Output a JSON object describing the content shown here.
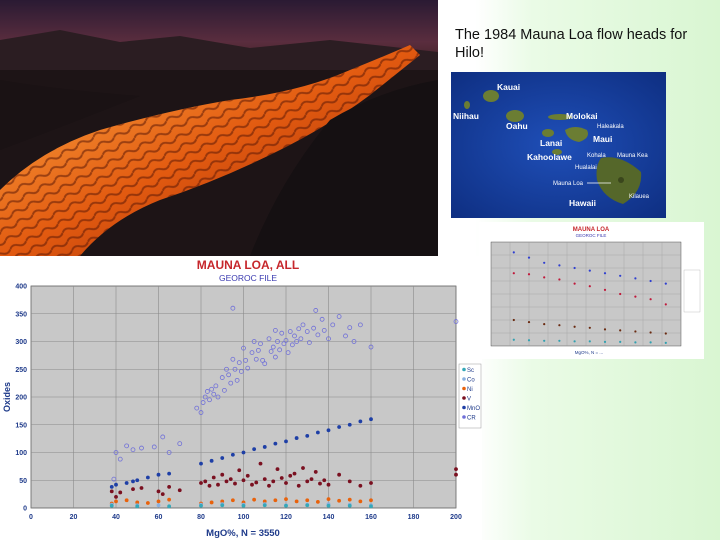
{
  "caption": "The 1984 Mauna Loa flow heads for Hilo!",
  "map": {
    "islands": {
      "kauai": "Kauai",
      "niihau": "Niihau",
      "oahu": "Oahu",
      "molokai": "Molokai",
      "lanai": "Lanai",
      "maui": "Maui",
      "kahoolawe": "Kahoolawe",
      "hawaii": "Hawaii"
    },
    "volcanoes": {
      "haleakala": "Haleakala",
      "kohala": "Kohala",
      "mauna_kea": "Mauna Kea",
      "hualalai": "Hualalai",
      "mauna_loa": "Mauna Loa",
      "kilauea": "Kilauea"
    }
  },
  "chart_data": [
    {
      "type": "scatter",
      "title": "MAUNA LOA, ALL",
      "subtitle": "GEOROC FILE",
      "xlabel": "MgO%,  N = 3550",
      "ylabel": "Oxides",
      "xlim": [
        0,
        200
      ],
      "ylim": [
        0,
        400
      ],
      "x_ticks": [
        0,
        20,
        40,
        60,
        80,
        100,
        120,
        140,
        160,
        180,
        200
      ],
      "y_ticks": [
        0,
        50,
        100,
        150,
        200,
        250,
        300,
        350,
        400
      ],
      "grid": true,
      "legend_position": "right",
      "series": [
        {
          "name": "CR",
          "color": "#7070d8",
          "marker": "ring",
          "points": [
            [
              39,
              52
            ],
            [
              40,
              100
            ],
            [
              42,
              88
            ],
            [
              45,
              112
            ],
            [
              48,
              105
            ],
            [
              52,
              108
            ],
            [
              58,
              110
            ],
            [
              62,
              128
            ],
            [
              65,
              100
            ],
            [
              70,
              116
            ],
            [
              78,
              180
            ],
            [
              80,
              172
            ],
            [
              81,
              190
            ],
            [
              82,
              200
            ],
            [
              83,
              210
            ],
            [
              84,
              195
            ],
            [
              85,
              214
            ],
            [
              86,
              205
            ],
            [
              87,
              220
            ],
            [
              88,
              200
            ],
            [
              90,
              235
            ],
            [
              91,
              212
            ],
            [
              92,
              250
            ],
            [
              93,
              240
            ],
            [
              94,
              225
            ],
            [
              95,
              268
            ],
            [
              96,
              250
            ],
            [
              97,
              230
            ],
            [
              98,
              262
            ],
            [
              99,
              246
            ],
            [
              100,
              288
            ],
            [
              101,
              266
            ],
            [
              102,
              252
            ],
            [
              104,
              280
            ],
            [
              105,
              300
            ],
            [
              106,
              268
            ],
            [
              107,
              284
            ],
            [
              108,
              296
            ],
            [
              109,
              266
            ],
            [
              110,
              260
            ],
            [
              112,
              305
            ],
            [
              113,
              282
            ],
            [
              114,
              290
            ],
            [
              115,
              272
            ],
            [
              116,
              300
            ],
            [
              117,
              285
            ],
            [
              118,
              315
            ],
            [
              119,
              296
            ],
            [
              120,
              302
            ],
            [
              121,
              280
            ],
            [
              122,
              318
            ],
            [
              123,
              294
            ],
            [
              124,
              310
            ],
            [
              125,
              300
            ],
            [
              126,
              323
            ],
            [
              127,
              305
            ],
            [
              128,
              330
            ],
            [
              130,
              318
            ],
            [
              131,
              298
            ],
            [
              133,
              324
            ],
            [
              135,
              312
            ],
            [
              137,
              340
            ],
            [
              138,
              320
            ],
            [
              140,
              305
            ],
            [
              142,
              330
            ],
            [
              145,
              345
            ],
            [
              148,
              310
            ],
            [
              150,
              325
            ],
            [
              152,
              300
            ],
            [
              155,
              330
            ],
            [
              160,
              290
            ],
            [
              95,
              360
            ],
            [
              115,
              320
            ],
            [
              134,
              356
            ],
            [
              200,
              336
            ]
          ]
        },
        {
          "name": "MnO",
          "color": "#1e3fa6",
          "marker": "dot",
          "points": [
            [
              38,
              38
            ],
            [
              40,
              42
            ],
            [
              45,
              45
            ],
            [
              48,
              48
            ],
            [
              50,
              50
            ],
            [
              55,
              55
            ],
            [
              60,
              60
            ],
            [
              65,
              62
            ],
            [
              80,
              80
            ],
            [
              85,
              85
            ],
            [
              90,
              90
            ],
            [
              95,
              96
            ],
            [
              100,
              100
            ],
            [
              105,
              106
            ],
            [
              110,
              110
            ],
            [
              115,
              116
            ],
            [
              120,
              120
            ],
            [
              125,
              126
            ],
            [
              130,
              130
            ],
            [
              135,
              136
            ],
            [
              140,
              140
            ],
            [
              145,
              146
            ],
            [
              150,
              150
            ],
            [
              155,
              156
            ],
            [
              160,
              160
            ]
          ]
        },
        {
          "name": "V",
          "color": "#7a1020",
          "marker": "dot",
          "points": [
            [
              38,
              30
            ],
            [
              40,
              20
            ],
            [
              42,
              28
            ],
            [
              48,
              34
            ],
            [
              52,
              36
            ],
            [
              60,
              30
            ],
            [
              62,
              25
            ],
            [
              65,
              38
            ],
            [
              70,
              32
            ],
            [
              80,
              45
            ],
            [
              82,
              48
            ],
            [
              84,
              40
            ],
            [
              86,
              55
            ],
            [
              88,
              42
            ],
            [
              90,
              60
            ],
            [
              92,
              48
            ],
            [
              94,
              52
            ],
            [
              96,
              44
            ],
            [
              98,
              68
            ],
            [
              100,
              50
            ],
            [
              102,
              58
            ],
            [
              104,
              42
            ],
            [
              106,
              46
            ],
            [
              108,
              80
            ],
            [
              110,
              52
            ],
            [
              112,
              40
            ],
            [
              114,
              48
            ],
            [
              116,
              70
            ],
            [
              118,
              54
            ],
            [
              120,
              45
            ],
            [
              122,
              58
            ],
            [
              124,
              62
            ],
            [
              126,
              40
            ],
            [
              128,
              72
            ],
            [
              130,
              48
            ],
            [
              132,
              52
            ],
            [
              134,
              65
            ],
            [
              136,
              44
            ],
            [
              138,
              50
            ],
            [
              140,
              42
            ],
            [
              145,
              60
            ],
            [
              150,
              48
            ],
            [
              155,
              40
            ],
            [
              160,
              45
            ],
            [
              200,
              70
            ],
            [
              200,
              60
            ]
          ]
        },
        {
          "name": "Ni",
          "color": "#e8620c",
          "marker": "dot",
          "points": [
            [
              38,
              8
            ],
            [
              40,
              12
            ],
            [
              45,
              14
            ],
            [
              50,
              10
            ],
            [
              55,
              9
            ],
            [
              60,
              12
            ],
            [
              65,
              15
            ],
            [
              80,
              8
            ],
            [
              85,
              10
            ],
            [
              90,
              12
            ],
            [
              95,
              14
            ],
            [
              100,
              10
            ],
            [
              105,
              15
            ],
            [
              110,
              12
            ],
            [
              115,
              14
            ],
            [
              120,
              16
            ],
            [
              125,
              12
            ],
            [
              130,
              14
            ],
            [
              135,
              11
            ],
            [
              140,
              16
            ],
            [
              145,
              13
            ],
            [
              150,
              15
            ],
            [
              155,
              12
            ],
            [
              160,
              14
            ]
          ]
        },
        {
          "name": "Co",
          "color": "#8ab0e0",
          "marker": "dot",
          "points": [
            [
              38,
              6
            ],
            [
              50,
              5
            ],
            [
              60,
              5
            ],
            [
              80,
              6
            ],
            [
              90,
              7
            ],
            [
              100,
              6
            ],
            [
              110,
              7
            ],
            [
              120,
              5
            ],
            [
              130,
              6
            ],
            [
              140,
              7
            ],
            [
              150,
              6
            ],
            [
              160,
              5
            ]
          ]
        },
        {
          "name": "Sc",
          "color": "#36a8b8",
          "marker": "dot",
          "points": [
            [
              38,
              4
            ],
            [
              50,
              3
            ],
            [
              65,
              3
            ],
            [
              80,
              4
            ],
            [
              90,
              5
            ],
            [
              100,
              4
            ],
            [
              110,
              5
            ],
            [
              120,
              4
            ],
            [
              130,
              5
            ],
            [
              140,
              4
            ],
            [
              150,
              4
            ],
            [
              160,
              3
            ]
          ]
        }
      ]
    },
    {
      "type": "scatter",
      "title": "MAUNA LOA",
      "subtitle": "GEOROC FILE",
      "xlabel": "MgO%,  N = ...",
      "grid": true,
      "legend_position": "right",
      "series": [
        {
          "color": "#2f3fd0",
          "points": [
            [
              6,
              18
            ],
            [
              10,
              17
            ],
            [
              14,
              16
            ],
            [
              18,
              15.5
            ],
            [
              22,
              15
            ],
            [
              26,
              14.5
            ],
            [
              30,
              14
            ],
            [
              34,
              13.5
            ],
            [
              38,
              13
            ],
            [
              42,
              12.5
            ],
            [
              46,
              12
            ]
          ]
        },
        {
          "color": "#c0183a",
          "points": [
            [
              6,
              14
            ],
            [
              10,
              13.8
            ],
            [
              14,
              13.2
            ],
            [
              18,
              12.8
            ],
            [
              22,
              12
            ],
            [
              26,
              11.5
            ],
            [
              30,
              10.8
            ],
            [
              34,
              10
            ],
            [
              38,
              9.5
            ],
            [
              42,
              9
            ],
            [
              46,
              8
            ]
          ]
        },
        {
          "color": "#6a2a10",
          "points": [
            [
              6,
              5
            ],
            [
              10,
              4.6
            ],
            [
              14,
              4.2
            ],
            [
              18,
              4
            ],
            [
              22,
              3.7
            ],
            [
              26,
              3.5
            ],
            [
              30,
              3.2
            ],
            [
              34,
              3
            ],
            [
              38,
              2.8
            ],
            [
              42,
              2.6
            ],
            [
              46,
              2.4
            ]
          ]
        },
        {
          "color": "#30a0b0",
          "points": [
            [
              6,
              1.2
            ],
            [
              10,
              1.1
            ],
            [
              14,
              1
            ],
            [
              18,
              1
            ],
            [
              22,
              0.9
            ],
            [
              26,
              0.9
            ],
            [
              30,
              0.8
            ],
            [
              34,
              0.8
            ],
            [
              38,
              0.7
            ],
            [
              42,
              0.7
            ],
            [
              46,
              0.6
            ]
          ]
        }
      ]
    }
  ]
}
